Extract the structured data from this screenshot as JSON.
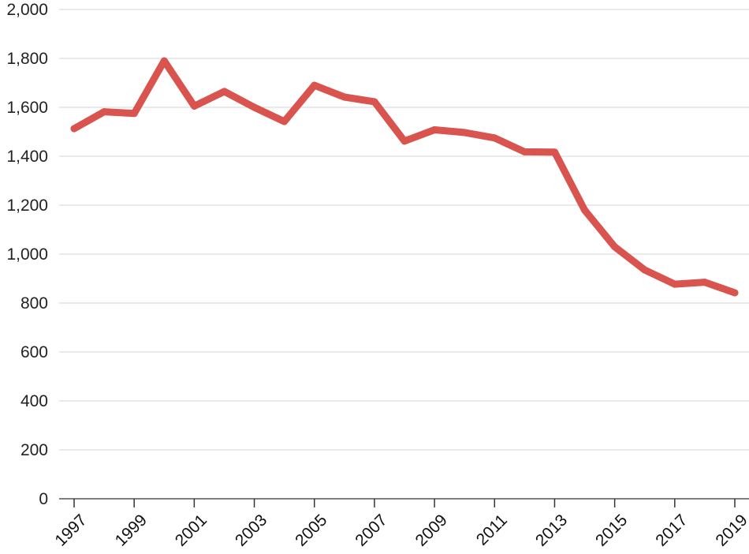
{
  "chart_data": {
    "type": "line",
    "title": "",
    "xlabel": "",
    "ylabel": "",
    "x": [
      1997,
      1998,
      1999,
      2000,
      2001,
      2002,
      2003,
      2004,
      2005,
      2006,
      2007,
      2008,
      2009,
      2010,
      2011,
      2012,
      2013,
      2014,
      2015,
      2016,
      2017,
      2018,
      2019
    ],
    "x_tick_labels": [
      "1997",
      "1999",
      "2001",
      "2003",
      "2005",
      "2007",
      "2009",
      "2011",
      "2013",
      "2015",
      "2017",
      "2019"
    ],
    "y_tick_values": [
      0,
      200,
      400,
      600,
      800,
      1000,
      1200,
      1400,
      1600,
      1800,
      2000
    ],
    "y_tick_labels": [
      "0",
      "200",
      "400",
      "600",
      "800",
      "1,000",
      "1,200",
      "1,400",
      "1,600",
      "1,800",
      "2,000"
    ],
    "ylim": [
      0,
      2000
    ],
    "grid": true,
    "legend": "none",
    "series": [
      {
        "color": "#d9534f",
        "values": [
          1513,
          1582,
          1575,
          1790,
          1605,
          1665,
          1600,
          1542,
          1690,
          1642,
          1623,
          1462,
          1508,
          1497,
          1475,
          1418,
          1417,
          1180,
          1030,
          935,
          877,
          885,
          842
        ]
      }
    ]
  }
}
